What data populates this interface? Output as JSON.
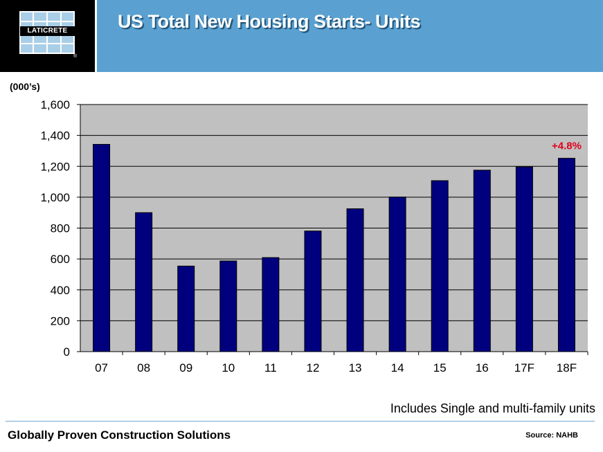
{
  "header": {
    "title": "US Total New Housing Starts- Units",
    "logo_text": "LATICRETE",
    "registered_mark": "®"
  },
  "chart_data": {
    "type": "bar",
    "title": "US Total New Housing Starts- Units",
    "ylabel": "(000’s)",
    "xlabel": "",
    "categories": [
      "07",
      "08",
      "09",
      "10",
      "11",
      "12",
      "13",
      "14",
      "15",
      "16",
      "17F",
      "18F"
    ],
    "values": [
      1342,
      900,
      554,
      587,
      609,
      781,
      925,
      1001,
      1107,
      1175,
      1196,
      1252
    ],
    "ylim": [
      0,
      1600
    ],
    "yticks": [
      0,
      200,
      400,
      600,
      800,
      1000,
      1200,
      1400,
      1600
    ],
    "ytick_labels": [
      "0",
      "200",
      "400",
      "600",
      "800",
      "1,000",
      "1,200",
      "1,400",
      "1,600"
    ],
    "grid": true,
    "annotation": {
      "text": "+4.8%",
      "category": "18F",
      "color": "#e0001b"
    },
    "bar_color": "#00007f",
    "plot_background": "#c0c0c0"
  },
  "footer": {
    "note": "Includes Single and multi-family units",
    "tagline": "Globally Proven Construction Solutions",
    "source": "Source: NAHB"
  },
  "colors": {
    "header_band": "#5aa1d1",
    "logo_background": "#000000",
    "logo_tiles": "#a9cfe8",
    "divider": "#6ea6cf"
  }
}
